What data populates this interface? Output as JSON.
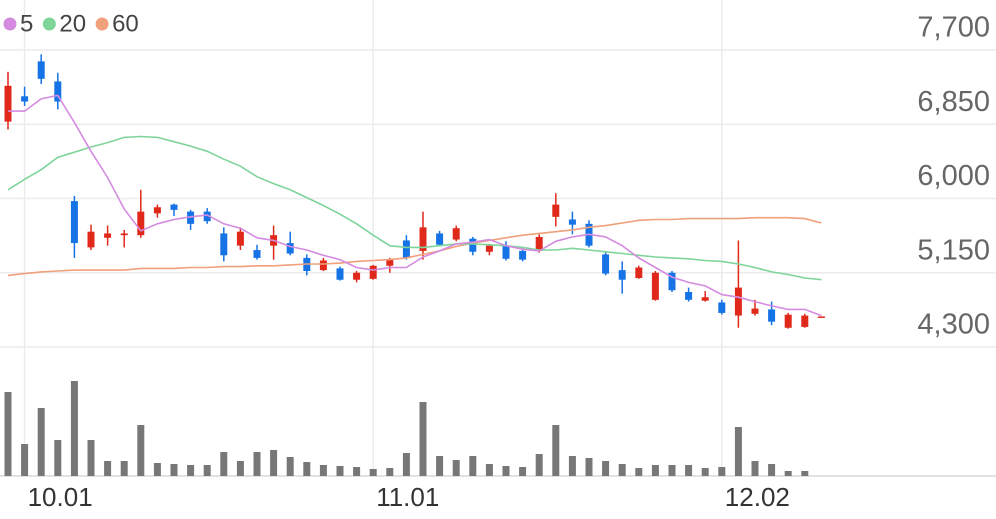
{
  "chart_data": {
    "type": "candlestick",
    "categories": [
      null,
      "10.01",
      null,
      null,
      null,
      null,
      null,
      null,
      null,
      null,
      null,
      null,
      null,
      null,
      null,
      null,
      null,
      null,
      null,
      null,
      null,
      null,
      "11.01",
      null,
      null,
      null,
      null,
      null,
      null,
      null,
      null,
      null,
      null,
      null,
      null,
      null,
      null,
      null,
      null,
      null,
      null,
      null,
      null,
      "12.02",
      null,
      null,
      null,
      null,
      null,
      null
    ],
    "open": [
      6880,
      7170,
      7570,
      7340,
      5970,
      5440,
      5550,
      5580,
      5580,
      5830,
      5930,
      5850,
      5850,
      5600,
      5460,
      5410,
      5460,
      5490,
      5320,
      5180,
      5200,
      5070,
      5080,
      5230,
      5520,
      5400,
      5600,
      5530,
      5540,
      5390,
      5460,
      5400,
      5400,
      5790,
      5760,
      5710,
      5360,
      5180,
      5090,
      4840,
      5150,
      4930,
      4830,
      4810,
      4660,
      4680,
      4730,
      4520,
      4530,
      4640
    ],
    "high": [
      7450,
      7280,
      7650,
      7440,
      6030,
      5700,
      5690,
      5640,
      6100,
      5930,
      5940,
      5870,
      5890,
      5670,
      5670,
      5470,
      5690,
      5620,
      5360,
      5320,
      5220,
      5170,
      5240,
      5320,
      5580,
      5850,
      5630,
      5690,
      5560,
      5480,
      5510,
      5430,
      5590,
      6060,
      5850,
      5750,
      5390,
      5280,
      5230,
      5170,
      5170,
      4980,
      4940,
      4840,
      5520,
      4840,
      4820,
      4690,
      4680,
      4650
    ],
    "low": [
      6790,
      7060,
      7310,
      7020,
      5320,
      5410,
      5460,
      5440,
      5550,
      5780,
      5800,
      5640,
      5710,
      5280,
      5410,
      5300,
      5300,
      5350,
      5120,
      5170,
      5060,
      5040,
      5070,
      5150,
      5300,
      5300,
      5450,
      5510,
      5350,
      5350,
      5290,
      5280,
      5380,
      5680,
      5590,
      5440,
      5120,
      4910,
      5080,
      4830,
      4930,
      4820,
      4820,
      4670,
      4520,
      4660,
      4550,
      4510,
      4520,
      4640
    ],
    "close": [
      7290,
      7110,
      7370,
      7110,
      5490,
      5620,
      5600,
      5600,
      5850,
      5900,
      5870,
      5710,
      5740,
      5350,
      5620,
      5320,
      5580,
      5370,
      5170,
      5290,
      5070,
      5150,
      5230,
      5300,
      5320,
      5670,
      5470,
      5660,
      5390,
      5460,
      5310,
      5300,
      5560,
      5930,
      5700,
      5460,
      5140,
      5070,
      5210,
      5150,
      4950,
      4840,
      4870,
      4690,
      4980,
      4740,
      4590,
      4670,
      4660,
      4650
    ],
    "up_color": "#e0291b",
    "down_color": "#1673e6",
    "volume": [
      84,
      32,
      68,
      36,
      95,
      36,
      15,
      15,
      51,
      13,
      12,
      11,
      11,
      24,
      15,
      24,
      26,
      19,
      14,
      11,
      10,
      9,
      7,
      8,
      23,
      74,
      20,
      16,
      20,
      12,
      10,
      9,
      22,
      51,
      20,
      18,
      15,
      12,
      8,
      11,
      11,
      11,
      8,
      9,
      49,
      15,
      12,
      5,
      5,
      0
    ],
    "volume_color": "#777777",
    "series": [
      {
        "name": "5",
        "color": "#d48be0",
        "values": [
          7000,
          7000,
          7140,
          7180,
          6870,
          6540,
          6240,
          5880,
          5630,
          5710,
          5760,
          5790,
          5810,
          5710,
          5660,
          5550,
          5520,
          5450,
          5410,
          5350,
          5300,
          5210,
          5180,
          5210,
          5210,
          5330,
          5400,
          5480,
          5500,
          5530,
          5460,
          5420,
          5400,
          5510,
          5560,
          5590,
          5560,
          5460,
          5320,
          5210,
          5100,
          5040,
          5000,
          4900,
          4870,
          4820,
          4770,
          4730,
          4730,
          4660
        ]
      },
      {
        "name": "20",
        "color": "#7fd49a",
        "values": [
          6100,
          6220,
          6330,
          6470,
          6530,
          6590,
          6640,
          6700,
          6710,
          6700,
          6650,
          6600,
          6540,
          6450,
          6370,
          6250,
          6170,
          6100,
          6010,
          5920,
          5820,
          5710,
          5580,
          5460,
          5440,
          5440,
          5460,
          5480,
          5480,
          5470,
          5460,
          5440,
          5410,
          5410,
          5430,
          5410,
          5390,
          5370,
          5350,
          5330,
          5320,
          5310,
          5290,
          5280,
          5250,
          5210,
          5160,
          5130,
          5090,
          5070
        ]
      },
      {
        "name": "60",
        "color": "#f0a07a",
        "values": [
          5120,
          5140,
          5160,
          5170,
          5180,
          5180,
          5180,
          5180,
          5200,
          5200,
          5200,
          5210,
          5210,
          5220,
          5220,
          5230,
          5230,
          5240,
          5250,
          5250,
          5260,
          5280,
          5290,
          5300,
          5320,
          5360,
          5400,
          5450,
          5490,
          5520,
          5550,
          5580,
          5600,
          5620,
          5640,
          5670,
          5690,
          5720,
          5750,
          5760,
          5760,
          5770,
          5770,
          5770,
          5770,
          5780,
          5780,
          5780,
          5770,
          5720
        ]
      }
    ],
    "ylim": [
      4300,
      7700
    ],
    "yticks": [
      {
        "value": 7700,
        "label": "7,700"
      },
      {
        "value": 6850,
        "label": "6,850"
      },
      {
        "value": 6000,
        "label": "6,000"
      },
      {
        "value": 5150,
        "label": "5,150"
      },
      {
        "value": 4300,
        "label": "4,300"
      }
    ],
    "grid": true
  }
}
